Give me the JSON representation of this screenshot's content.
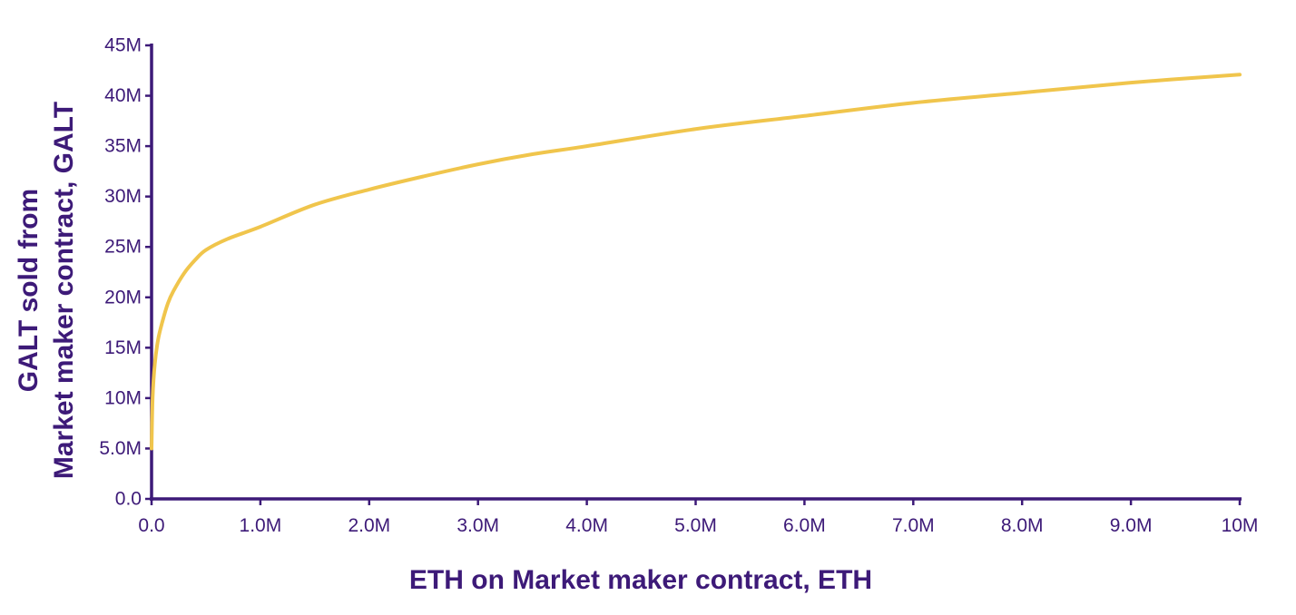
{
  "chart_data": {
    "type": "line",
    "title": "",
    "xlabel": "ETH on Market maker contract, ETH",
    "ylabel_lines": [
      "GALT sold from",
      "Market maker contract, GALT"
    ],
    "xlim": [
      0,
      10000000
    ],
    "ylim": [
      0,
      45000000
    ],
    "x_ticks": [
      {
        "value": 0,
        "label": "0.0"
      },
      {
        "value": 1000000,
        "label": "1.0M"
      },
      {
        "value": 2000000,
        "label": "2.0M"
      },
      {
        "value": 3000000,
        "label": "3.0M"
      },
      {
        "value": 4000000,
        "label": "4.0M"
      },
      {
        "value": 5000000,
        "label": "5.0M"
      },
      {
        "value": 6000000,
        "label": "6.0M"
      },
      {
        "value": 7000000,
        "label": "7.0M"
      },
      {
        "value": 8000000,
        "label": "8.0M"
      },
      {
        "value": 9000000,
        "label": "9.0M"
      },
      {
        "value": 10000000,
        "label": "10M"
      }
    ],
    "y_ticks": [
      {
        "value": 0,
        "label": "0.0"
      },
      {
        "value": 5000000,
        "label": "5.0M"
      },
      {
        "value": 10000000,
        "label": "10M"
      },
      {
        "value": 15000000,
        "label": "15M"
      },
      {
        "value": 20000000,
        "label": "20M"
      },
      {
        "value": 25000000,
        "label": "25M"
      },
      {
        "value": 30000000,
        "label": "30M"
      },
      {
        "value": 35000000,
        "label": "35M"
      },
      {
        "value": 40000000,
        "label": "40M"
      },
      {
        "value": 45000000,
        "label": "45M"
      }
    ],
    "grid": false,
    "legend": "none",
    "series": [
      {
        "color": "#F0C54C",
        "x": [
          0,
          10000,
          30000,
          60000,
          100000,
          150000,
          200000,
          300000,
          400000,
          500000,
          700000,
          1000000,
          1500000,
          2000000,
          2500000,
          3000000,
          3500000,
          4000000,
          5000000,
          6000000,
          7000000,
          8000000,
          9000000,
          10000000
        ],
        "y": [
          5000000,
          10100000,
          13400000,
          15800000,
          17600000,
          19400000,
          20600000,
          22400000,
          23700000,
          24700000,
          25800000,
          27000000,
          29200000,
          30700000,
          32000000,
          33200000,
          34200000,
          35000000,
          36700000,
          38000000,
          39300000,
          40300000,
          41300000,
          42100000
        ]
      }
    ]
  },
  "colors": {
    "axis": "#3D1A78",
    "text": "#3D1A78",
    "line": "#F0C54C"
  }
}
